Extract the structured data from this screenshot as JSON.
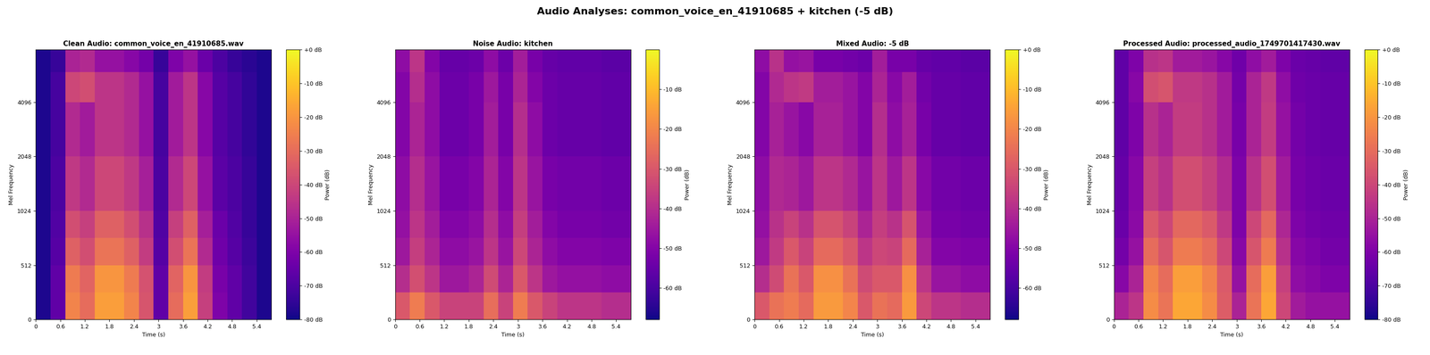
{
  "title": "Audio Analyses: common_voice_en_41910685 + kitchen (-5 dB)",
  "chart_data": [
    {
      "type": "heatmap",
      "title": "Clean Audio: common_voice_en_41910685.wav",
      "x_label": "Time (s)",
      "y_label": "Mel Frequency",
      "color": "plasma",
      "xlim": [
        0,
        5.76
      ],
      "xticks": [
        0,
        0.6,
        1.2,
        1.8,
        2.4,
        3,
        3.6,
        4.2,
        4.8,
        5.4
      ],
      "ylim": [
        0,
        8000
      ],
      "yticks": [
        0,
        512,
        1024,
        2048,
        4096
      ],
      "time_edges": [
        0,
        0.36,
        0.72,
        1.08,
        1.44,
        1.8,
        2.16,
        2.52,
        2.88,
        3.24,
        3.6,
        3.96,
        4.32,
        4.68,
        5.04,
        5.4,
        5.76
      ],
      "frequency_edges": [
        0,
        256,
        512,
        768,
        1024,
        2048,
        4096,
        6000,
        8000
      ],
      "cells": [
        [
          -78,
          -66,
          -24,
          -30,
          -18,
          -18,
          -24,
          -36,
          -66,
          -30,
          -18,
          -42,
          -60,
          -66,
          -72,
          -78
        ],
        [
          -78,
          -66,
          -26,
          -32,
          -20,
          -20,
          -26,
          -37,
          -66,
          -32,
          -20,
          -43,
          -61,
          -66,
          -72,
          -78
        ],
        [
          -78,
          -68,
          -33,
          -38,
          -28,
          -28,
          -33,
          -43,
          -68,
          -38,
          -28,
          -48,
          -63,
          -68,
          -73,
          -78
        ],
        [
          -78,
          -69,
          -38,
          -42,
          -33,
          -33,
          -38,
          -46,
          -69,
          -42,
          -33,
          -51,
          -64,
          -69,
          -74,
          -78
        ],
        [
          -78,
          -70,
          -44,
          -48,
          -40,
          -40,
          -44,
          -51,
          -70,
          -48,
          -40,
          -55,
          -67,
          -70,
          -74,
          -78
        ],
        [
          -78,
          -71,
          -48,
          -52,
          -45,
          -45,
          -48,
          -55,
          -71,
          -52,
          -45,
          -58,
          -68,
          -71,
          -75,
          -78
        ],
        [
          -78,
          -71,
          -40,
          -38,
          -45,
          -45,
          -48,
          -55,
          -71,
          -52,
          -45,
          -58,
          -68,
          -71,
          -75,
          -78
        ],
        [
          -78,
          -74,
          -50,
          -48,
          -55,
          -55,
          -58,
          -62,
          -74,
          -60,
          -55,
          -64,
          -70,
          -74,
          -76,
          -78
        ]
      ],
      "colorbar": {
        "label": "Power (dB)",
        "range": [
          -80,
          0
        ],
        "ticks": [
          {
            "value": 0,
            "label": "+0 dB"
          },
          {
            "value": -10,
            "label": "-10 dB"
          },
          {
            "value": -20,
            "label": "-20 dB"
          },
          {
            "value": -30,
            "label": "-30 dB"
          },
          {
            "value": -40,
            "label": "-40 dB"
          },
          {
            "value": -50,
            "label": "-50 dB"
          },
          {
            "value": -60,
            "label": "-60 dB"
          },
          {
            "value": -70,
            "label": "-70 dB"
          },
          {
            "value": -80,
            "label": "-80 dB"
          }
        ]
      }
    },
    {
      "type": "heatmap",
      "title": "Noise Audio: kitchen",
      "x_label": "Time (s)",
      "y_label": "Mel Frequency",
      "color": "plasma",
      "xlim": [
        0,
        5.76
      ],
      "xticks": [
        0,
        0.6,
        1.2,
        1.8,
        2.4,
        3,
        3.6,
        4.2,
        4.8,
        5.4
      ],
      "ylim": [
        0,
        8000
      ],
      "yticks": [
        0,
        512,
        1024,
        2048,
        4096
      ],
      "time_edges": [
        0,
        0.36,
        0.72,
        1.08,
        1.44,
        1.8,
        2.16,
        2.52,
        2.88,
        3.24,
        3.6,
        3.96,
        4.32,
        4.68,
        5.04,
        5.4,
        5.76
      ],
      "frequency_edges": [
        0,
        256,
        512,
        768,
        1024,
        2048,
        4096,
        6000,
        8000
      ],
      "cells": [
        [
          -30,
          -22,
          -30,
          -35,
          -35,
          -35,
          -25,
          -35,
          -22,
          -30,
          -35,
          -38,
          -38,
          -38,
          -40,
          -40
        ],
        [
          -40,
          -32,
          -38,
          -45,
          -45,
          -42,
          -33,
          -42,
          -30,
          -38,
          -45,
          -47,
          -47,
          -47,
          -48,
          -48
        ],
        [
          -45,
          -36,
          -42,
          -48,
          -48,
          -46,
          -38,
          -46,
          -34,
          -42,
          -48,
          -50,
          -50,
          -50,
          -51,
          -51
        ],
        [
          -47,
          -38,
          -44,
          -50,
          -50,
          -48,
          -40,
          -48,
          -36,
          -44,
          -50,
          -52,
          -52,
          -52,
          -53,
          -53
        ],
        [
          -48,
          -40,
          -46,
          -52,
          -52,
          -50,
          -42,
          -50,
          -38,
          -46,
          -52,
          -53,
          -53,
          -53,
          -54,
          -54
        ],
        [
          -50,
          -42,
          -48,
          -54,
          -54,
          -52,
          -44,
          -52,
          -40,
          -48,
          -54,
          -55,
          -55,
          -55,
          -56,
          -56
        ],
        [
          -50,
          -40,
          -48,
          -54,
          -54,
          -52,
          -45,
          -52,
          -42,
          -50,
          -54,
          -55,
          -55,
          -55,
          -56,
          -56
        ],
        [
          -48,
          -38,
          -50,
          -55,
          -55,
          -54,
          -48,
          -54,
          -44,
          -52,
          -55,
          -56,
          -56,
          -56,
          -57,
          -57
        ]
      ],
      "colorbar": {
        "label": "Power (dB)",
        "range": [
          -68,
          0
        ],
        "ticks": [
          {
            "value": -10,
            "label": "-10 dB"
          },
          {
            "value": -20,
            "label": "-20 dB"
          },
          {
            "value": -30,
            "label": "-30 dB"
          },
          {
            "value": -40,
            "label": "-40 dB"
          },
          {
            "value": -50,
            "label": "-50 dB"
          },
          {
            "value": -60,
            "label": "-60 dB"
          }
        ]
      }
    },
    {
      "type": "heatmap",
      "title": "Mixed Audio: -5 dB",
      "x_label": "Time (s)",
      "y_label": "Mel Frequency",
      "color": "plasma",
      "xlim": [
        0,
        5.76
      ],
      "xticks": [
        0,
        0.6,
        1.2,
        1.8,
        2.4,
        3,
        3.6,
        4.2,
        4.8,
        5.4
      ],
      "ylim": [
        0,
        8000
      ],
      "yticks": [
        0,
        512,
        1024,
        2048,
        4096
      ],
      "time_edges": [
        0,
        0.36,
        0.72,
        1.08,
        1.44,
        1.8,
        2.16,
        2.52,
        2.88,
        3.24,
        3.6,
        3.96,
        4.32,
        4.68,
        5.04,
        5.4,
        5.76
      ],
      "frequency_edges": [
        0,
        256,
        512,
        768,
        1024,
        2048,
        4096,
        6000,
        8000
      ],
      "cells": [
        [
          -30,
          -24,
          -22,
          -26,
          -16,
          -16,
          -20,
          -30,
          -24,
          -26,
          -16,
          -34,
          -38,
          -38,
          -40,
          -40
        ],
        [
          -40,
          -33,
          -24,
          -30,
          -18,
          -18,
          -24,
          -33,
          -30,
          -30,
          -18,
          -38,
          -46,
          -46,
          -48,
          -48
        ],
        [
          -45,
          -37,
          -30,
          -35,
          -26,
          -26,
          -30,
          -38,
          -34,
          -35,
          -26,
          -43,
          -50,
          -50,
          -51,
          -51
        ],
        [
          -47,
          -39,
          -35,
          -39,
          -31,
          -31,
          -35,
          -42,
          -36,
          -39,
          -31,
          -46,
          -52,
          -52,
          -53,
          -53
        ],
        [
          -48,
          -41,
          -42,
          -45,
          -38,
          -38,
          -41,
          -46,
          -38,
          -45,
          -38,
          -49,
          -53,
          -53,
          -54,
          -54
        ],
        [
          -50,
          -43,
          -46,
          -49,
          -43,
          -43,
          -46,
          -50,
          -40,
          -48,
          -43,
          -52,
          -55,
          -55,
          -56,
          -56
        ],
        [
          -50,
          -41,
          -38,
          -37,
          -44,
          -44,
          -46,
          -50,
          -42,
          -49,
          -44,
          -53,
          -55,
          -55,
          -56,
          -56
        ],
        [
          -48,
          -39,
          -47,
          -46,
          -52,
          -52,
          -53,
          -54,
          -44,
          -52,
          -52,
          -55,
          -56,
          -56,
          -57,
          -57
        ]
      ],
      "colorbar": {
        "label": "Power (dB)",
        "range": [
          -68,
          0
        ],
        "ticks": [
          {
            "value": 0,
            "label": "+0 dB"
          },
          {
            "value": -10,
            "label": "-10 dB"
          },
          {
            "value": -20,
            "label": "-20 dB"
          },
          {
            "value": -30,
            "label": "-30 dB"
          },
          {
            "value": -40,
            "label": "-40 dB"
          },
          {
            "value": -50,
            "label": "-50 dB"
          },
          {
            "value": -60,
            "label": "-60 dB"
          }
        ]
      }
    },
    {
      "type": "heatmap",
      "title": "Processed Audio: processed_audio_1749701417430.wav",
      "x_label": "Time (s)",
      "y_label": "Mel Frequency",
      "color": "plasma",
      "xlim": [
        0,
        5.76
      ],
      "xticks": [
        0,
        0.6,
        1.2,
        1.8,
        2.4,
        3,
        3.6,
        4.2,
        4.8,
        5.4
      ],
      "ylim": [
        0,
        8000
      ],
      "yticks": [
        0,
        512,
        1024,
        2048,
        4096
      ],
      "time_edges": [
        0,
        0.36,
        0.72,
        1.08,
        1.44,
        1.8,
        2.16,
        2.52,
        2.88,
        3.24,
        3.6,
        3.96,
        4.32,
        4.68,
        5.04,
        5.4,
        5.76
      ],
      "frequency_edges": [
        0,
        256,
        512,
        768,
        1024,
        2048,
        4096,
        6000,
        8000
      ],
      "cells": [
        [
          -50,
          -45,
          -22,
          -28,
          -16,
          -16,
          -22,
          -34,
          -50,
          -28,
          -16,
          -40,
          -52,
          -55,
          -55,
          -55
        ],
        [
          -58,
          -50,
          -24,
          -30,
          -18,
          -18,
          -24,
          -35,
          -55,
          -30,
          -18,
          -42,
          -56,
          -58,
          -60,
          -60
        ],
        [
          -62,
          -55,
          -30,
          -36,
          -26,
          -26,
          -30,
          -40,
          -58,
          -36,
          -26,
          -46,
          -58,
          -60,
          -62,
          -62
        ],
        [
          -64,
          -57,
          -35,
          -40,
          -31,
          -31,
          -35,
          -44,
          -60,
          -40,
          -31,
          -49,
          -60,
          -62,
          -63,
          -63
        ],
        [
          -65,
          -58,
          -42,
          -46,
          -38,
          -38,
          -42,
          -48,
          -60,
          -46,
          -38,
          -52,
          -61,
          -63,
          -64,
          -64
        ],
        [
          -66,
          -60,
          -46,
          -50,
          -43,
          -43,
          -46,
          -52,
          -61,
          -50,
          -43,
          -55,
          -62,
          -64,
          -65,
          -65
        ],
        [
          -66,
          -58,
          -38,
          -36,
          -44,
          -44,
          -46,
          -52,
          -62,
          -50,
          -44,
          -56,
          -63,
          -64,
          -65,
          -65
        ],
        [
          -66,
          -60,
          -46,
          -45,
          -52,
          -52,
          -54,
          -58,
          -63,
          -56,
          -52,
          -60,
          -64,
          -65,
          -66,
          -66
        ]
      ],
      "colorbar": {
        "label": "Power (dB)",
        "range": [
          -80,
          0
        ],
        "ticks": [
          {
            "value": 0,
            "label": "+0 dB"
          },
          {
            "value": -10,
            "label": "-10 dB"
          },
          {
            "value": -20,
            "label": "-20 dB"
          },
          {
            "value": -30,
            "label": "-30 dB"
          },
          {
            "value": -40,
            "label": "-40 dB"
          },
          {
            "value": -50,
            "label": "-50 dB"
          },
          {
            "value": -60,
            "label": "-60 dB"
          },
          {
            "value": -70,
            "label": "-70 dB"
          },
          {
            "value": -80,
            "label": "-80 dB"
          }
        ]
      }
    }
  ]
}
